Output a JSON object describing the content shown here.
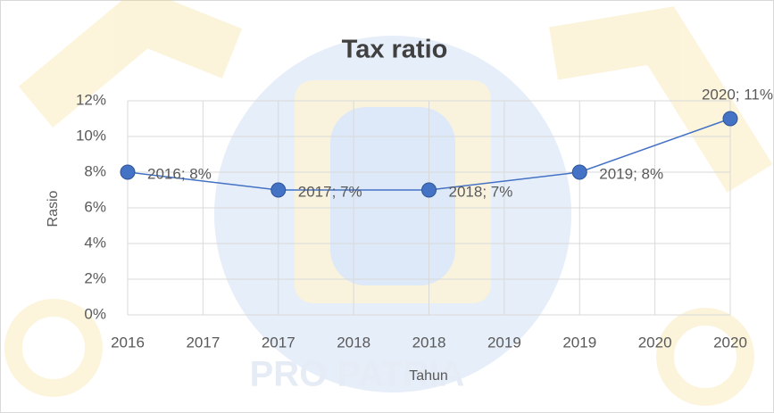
{
  "chart_data": {
    "type": "line",
    "title": "Tax ratio",
    "x_label": "Tahun",
    "y_label": "Rasio",
    "watermark": "PRO PATRIA",
    "x": [
      2016,
      2017,
      2018,
      2019,
      2020
    ],
    "values": [
      8,
      7,
      7,
      8,
      11
    ],
    "value_labels": [
      "2016; 8%",
      "2017; 7%",
      "2018; 7%",
      "2019; 8%",
      "2020; 11%"
    ],
    "color": "#4472c4",
    "xlim": [
      2016,
      2020
    ],
    "xticks": [
      2016,
      {
        "value": 2016.5,
        "label": "2017"
      },
      2017,
      {
        "value": 2017.5,
        "label": "2018"
      },
      2018,
      {
        "value": 2018.5,
        "label": "2019"
      },
      2019,
      {
        "value": 2019.5,
        "label": "2020"
      },
      2020
    ],
    "ylim": [
      0,
      12
    ],
    "yticks": [
      {
        "value": 0,
        "label": "0%"
      },
      {
        "value": 2,
        "label": "2%"
      },
      {
        "value": 4,
        "label": "4%"
      },
      {
        "value": 6,
        "label": "6%"
      },
      {
        "value": 8,
        "label": "8%"
      },
      {
        "value": 10,
        "label": "10%"
      },
      {
        "value": 12,
        "label": "12%"
      }
    ],
    "grid": true
  }
}
